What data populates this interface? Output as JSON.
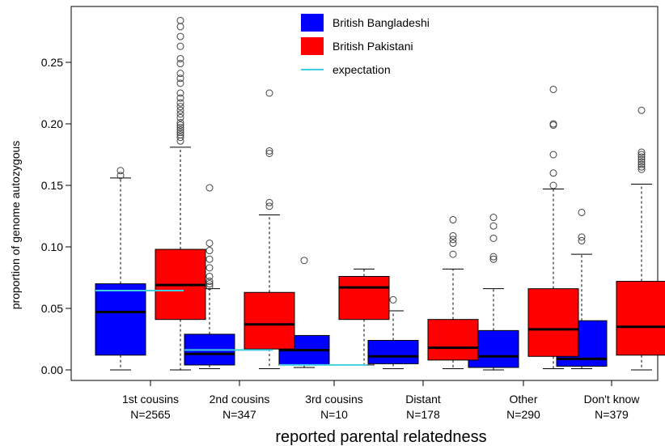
{
  "chart_data": {
    "type": "boxplot",
    "title": "",
    "xlabel": "reported parental relatedness",
    "ylabel": "proportion of genome autozygous",
    "ylim": [
      -0.008,
      0.297
    ],
    "yticks": [
      "0.00",
      "0.05",
      "0.10",
      "0.15",
      "0.20",
      "0.25"
    ],
    "categories": [
      "1st cousins",
      "2nd cousins",
      "3rd cousins",
      "Distant",
      "Other",
      "Don't know"
    ],
    "counts": [
      "N=2565",
      "N=347",
      "N=10",
      "N=178",
      "N=290",
      "N=379"
    ],
    "expectation": [
      0.0645,
      0.0162,
      0.004
    ],
    "series": [
      {
        "name": "British Bangladeshi",
        "color": "#0000ff",
        "boxes": [
          {
            "min": 0.0,
            "q1": 0.012,
            "median": 0.047,
            "q3": 0.07,
            "max": 0.156,
            "outliers": [
              0.162,
              0.158
            ]
          },
          {
            "min": 0.001,
            "q1": 0.004,
            "median": 0.013,
            "q3": 0.029,
            "max": 0.066,
            "outliers": [
              0.148,
              0.103,
              0.097,
              0.09,
              0.083,
              0.076,
              0.072,
              0.07,
              0.068
            ]
          },
          {
            "min": 0.002,
            "q1": 0.004,
            "median": 0.016,
            "q3": 0.028,
            "max": 0.028,
            "outliers": [
              0.089
            ]
          },
          {
            "min": 0.001,
            "q1": 0.005,
            "median": 0.011,
            "q3": 0.024,
            "max": 0.048,
            "outliers": [
              0.057
            ]
          },
          {
            "min": 0.0,
            "q1": 0.002,
            "median": 0.011,
            "q3": 0.032,
            "max": 0.066,
            "outliers": [
              0.124,
              0.117,
              0.107,
              0.092,
              0.09
            ]
          },
          {
            "min": 0.001,
            "q1": 0.003,
            "median": 0.009,
            "q3": 0.04,
            "max": 0.094,
            "outliers": [
              0.128,
              0.108,
              0.105
            ]
          }
        ]
      },
      {
        "name": "British Pakistani",
        "color": "#ff0000",
        "boxes": [
          {
            "min": 0.0,
            "q1": 0.041,
            "median": 0.069,
            "q3": 0.098,
            "max": 0.181,
            "outliers": [
              0.284,
              0.279,
              0.271,
              0.263,
              0.253,
              0.249,
              0.241,
              0.237,
              0.233,
              0.225,
              0.221,
              0.217,
              0.214,
              0.211,
              0.208,
              0.205,
              0.201,
              0.199,
              0.197,
              0.195,
              0.193,
              0.191,
              0.189,
              0.186
            ]
          },
          {
            "min": 0.001,
            "q1": 0.017,
            "median": 0.037,
            "q3": 0.063,
            "max": 0.126,
            "outliers": [
              0.225,
              0.178,
              0.176,
              0.136,
              0.133
            ]
          },
          {
            "min": 0.004,
            "q1": 0.041,
            "median": 0.067,
            "q3": 0.076,
            "max": 0.082,
            "outliers": []
          },
          {
            "min": 0.001,
            "q1": 0.008,
            "median": 0.018,
            "q3": 0.041,
            "max": 0.082,
            "outliers": [
              0.122,
              0.109,
              0.106,
              0.103,
              0.094
            ]
          },
          {
            "min": 0.001,
            "q1": 0.011,
            "median": 0.033,
            "q3": 0.066,
            "max": 0.147,
            "outliers": [
              0.228,
              0.2,
              0.199,
              0.175,
              0.16,
              0.15
            ]
          },
          {
            "min": 0.0,
            "q1": 0.012,
            "median": 0.035,
            "q3": 0.072,
            "max": 0.151,
            "outliers": [
              0.211,
              0.177,
              0.175,
              0.173,
              0.171,
              0.169,
              0.167,
              0.165,
              0.163
            ]
          }
        ]
      }
    ],
    "legend": {
      "position": "top-center",
      "entries": [
        {
          "label": "British Bangladeshi",
          "kind": "fill",
          "color": "#0000ff"
        },
        {
          "label": "British Pakistani",
          "kind": "fill",
          "color": "#ff0000"
        },
        {
          "label": "expectation",
          "kind": "line",
          "color": "#40d0e0"
        }
      ]
    },
    "grid": false
  }
}
